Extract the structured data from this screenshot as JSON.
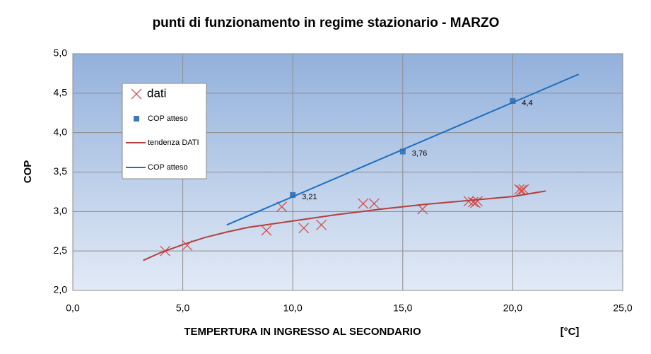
{
  "chart_data": {
    "type": "scatter",
    "title": "punti di funzionamento in regime stazionario - MARZO",
    "x_label": "TEMPERTURA IN INGRESSO AL SECONDARIO",
    "x_unit": "[°C]",
    "y_label": "COP",
    "xlim": [
      0,
      25
    ],
    "xticks": [
      {
        "value": 0,
        "label": "0,0"
      },
      {
        "value": 5,
        "label": "5,0"
      },
      {
        "value": 10,
        "label": "10,0"
      },
      {
        "value": 15,
        "label": "15,0"
      },
      {
        "value": 20,
        "label": "20,0"
      },
      {
        "value": 25,
        "label": "25,0"
      }
    ],
    "ylim": [
      2,
      5
    ],
    "yticks": [
      {
        "value": 2,
        "label": "2,0"
      },
      {
        "value": 2.5,
        "label": "2,5"
      },
      {
        "value": 3,
        "label": "3,0"
      },
      {
        "value": 3.5,
        "label": "3,5"
      },
      {
        "value": 4,
        "label": "4,0"
      },
      {
        "value": 4.5,
        "label": "4,5"
      },
      {
        "value": 5,
        "label": "5,0"
      }
    ],
    "grid": true,
    "legend": "left",
    "series": [
      {
        "name": "dati",
        "color": "#d0504d",
        "marker": "x",
        "x": [
          4.2,
          5.2,
          8.8,
          9.5,
          10.5,
          11.3,
          13.2,
          13.7,
          15.9,
          18.0,
          18.2,
          18.3,
          18.4,
          20.3,
          20.4,
          20.5
        ],
        "values": [
          2.5,
          2.57,
          2.76,
          3.06,
          2.79,
          2.83,
          3.1,
          3.1,
          3.03,
          3.13,
          3.12,
          3.11,
          3.13,
          3.28,
          3.27,
          3.28
        ]
      },
      {
        "name": "COP atteso",
        "color": "#3f78b8",
        "marker": "square",
        "x": [
          10,
          15,
          20
        ],
        "values": [
          3.21,
          3.76,
          4.4
        ],
        "value_labels": [
          "3,21",
          "3,76",
          "4,4"
        ]
      },
      {
        "name": "tendenza DATI",
        "color": "#b2403e",
        "marker": "line",
        "x": [
          3.2,
          4,
          5,
          6,
          7,
          8,
          10,
          12,
          14,
          16,
          18,
          20,
          21.5
        ],
        "values": [
          2.38,
          2.48,
          2.58,
          2.67,
          2.74,
          2.8,
          2.88,
          2.96,
          3.03,
          3.09,
          3.14,
          3.19,
          3.26
        ]
      },
      {
        "name": "COP atteso",
        "color": "#1f6fc0",
        "marker": "line",
        "x": [
          7,
          23
        ],
        "values": [
          2.83,
          4.74
        ]
      }
    ]
  }
}
